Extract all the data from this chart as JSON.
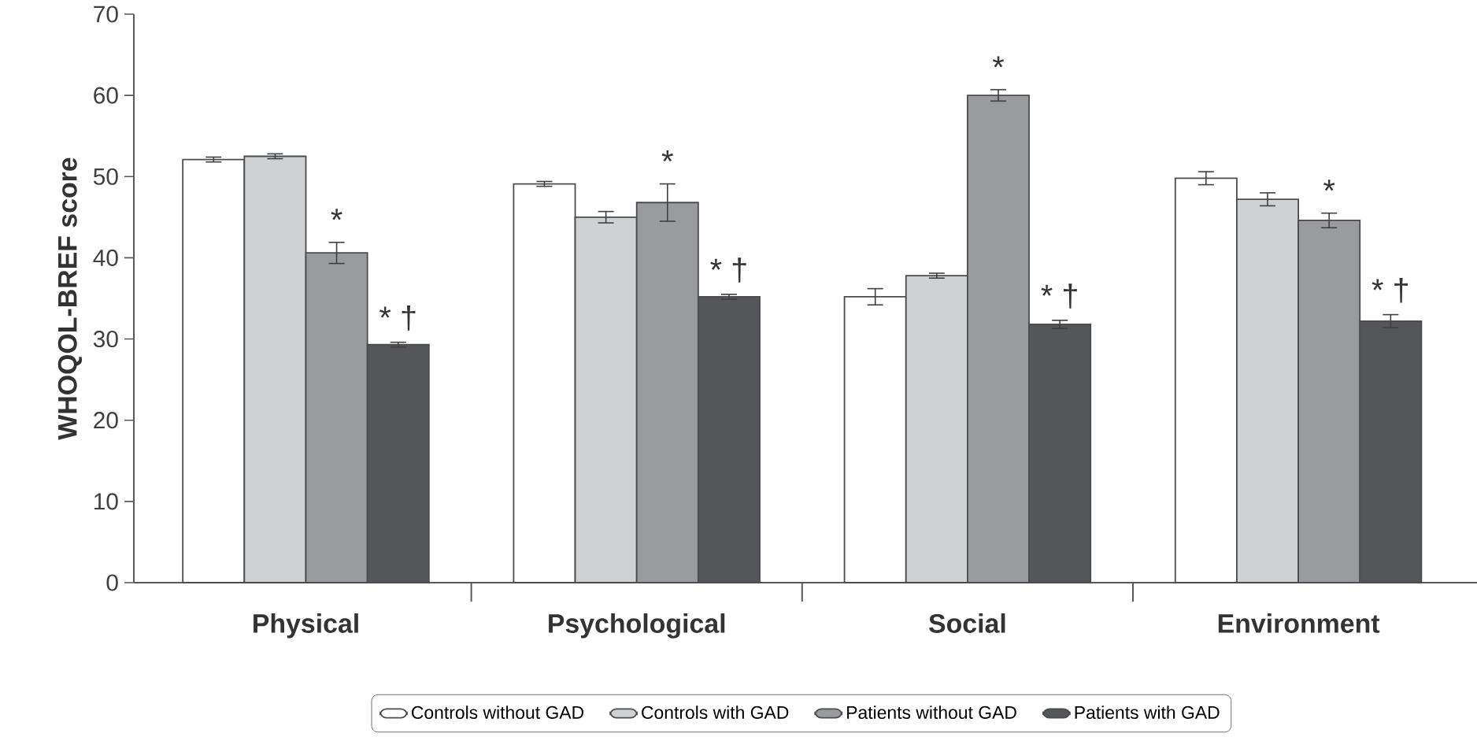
{
  "chart_data": {
    "type": "bar",
    "ylabel": "WHOQOL-BREF score",
    "categories": [
      "Physical",
      "Psychological",
      "Social",
      "Environment"
    ],
    "series": [
      {
        "name": "Controls without GAD",
        "color": "#ffffff",
        "values": [
          52.1,
          49.1,
          35.2,
          49.8
        ],
        "errors": [
          0.3,
          0.3,
          1.0,
          0.8
        ]
      },
      {
        "name": "Controls with GAD",
        "color": "#d0d1d3",
        "values": [
          52.5,
          45.0,
          37.8,
          47.2
        ],
        "errors": [
          0.3,
          0.7,
          0.3,
          0.8
        ]
      },
      {
        "name": "Patients without GAD",
        "color": "#9a9b9f",
        "values": [
          40.6,
          46.8,
          60.0,
          44.6
        ],
        "errors": [
          1.3,
          2.3,
          0.7,
          0.9
        ]
      },
      {
        "name": "Patients with GAD",
        "color": "#55565a",
        "values": [
          29.3,
          35.2,
          31.8,
          32.2
        ],
        "errors": [
          0.3,
          0.3,
          0.5,
          0.8
        ]
      }
    ],
    "ylim": [
      0,
      70
    ],
    "yticks": [
      0,
      10,
      20,
      30,
      40,
      50,
      60,
      70
    ],
    "grid": false,
    "legend": "bottom",
    "annotations": [
      {
        "text": "*",
        "x": "Physical",
        "y": 40.6
      },
      {
        "text": "* †",
        "x": "Physical",
        "y": 29.3
      },
      {
        "text": "*",
        "x": "Psychological",
        "y": 46.8
      },
      {
        "text": "* †",
        "x": "Psychological",
        "y": 35.2
      },
      {
        "text": "*",
        "x": "Social",
        "y": 60.0
      },
      {
        "text": "* †",
        "x": "Social",
        "y": 31.8
      },
      {
        "text": "*",
        "x": "Environment",
        "y": 44.6
      },
      {
        "text": "* †",
        "x": "Environment",
        "y": 32.2
      }
    ]
  }
}
